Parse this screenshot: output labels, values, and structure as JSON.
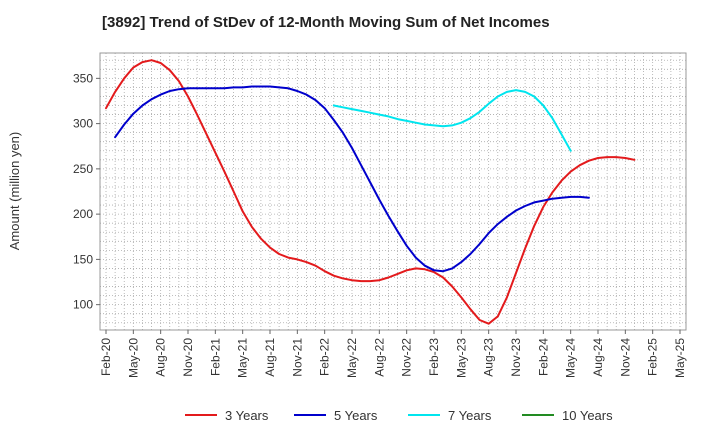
{
  "chart_data": {
    "type": "line",
    "title": "[3892]  Trend of StDev of 12-Month Moving Sum of Net Incomes",
    "xlabel": "",
    "ylabel": "Amount (million yen)",
    "ylim": [
      72,
      378
    ],
    "yticks": [
      100,
      150,
      200,
      250,
      300,
      350
    ],
    "x_categories": [
      "Feb-20",
      "May-20",
      "Aug-20",
      "Nov-20",
      "Feb-21",
      "May-21",
      "Aug-21",
      "Nov-21",
      "Feb-22",
      "May-22",
      "Aug-22",
      "Nov-22",
      "Feb-23",
      "May-23",
      "Aug-23",
      "Nov-23",
      "Feb-24",
      "May-24",
      "Aug-24",
      "Nov-24",
      "Feb-25",
      "May-25"
    ],
    "grid": true,
    "legend_position": "bottom",
    "series": [
      {
        "name": "3 Years",
        "color": "#e31a1c",
        "start_index": 0,
        "values": [
          317,
          335,
          350,
          362,
          368,
          370,
          367,
          359,
          347,
          330,
          310,
          289,
          268,
          247,
          225,
          203,
          186,
          173,
          163,
          156,
          152,
          150,
          147,
          143,
          137,
          132,
          129,
          127,
          126,
          126,
          127,
          130,
          134,
          138,
          140,
          139,
          136,
          130,
          120,
          108,
          95,
          83,
          79,
          87,
          108,
          135,
          162,
          187,
          208,
          224,
          237,
          247,
          254,
          259,
          262,
          263,
          263,
          262,
          260
        ]
      },
      {
        "name": "5 Years",
        "color": "#0000cc",
        "start_index": 1,
        "values": [
          285,
          299,
          311,
          320,
          327,
          332,
          336,
          338,
          339,
          339,
          339,
          339,
          339,
          340,
          340,
          341,
          341,
          341,
          340,
          339,
          336,
          332,
          326,
          317,
          304,
          290,
          273,
          254,
          235,
          216,
          198,
          181,
          165,
          152,
          143,
          138,
          137,
          140,
          147,
          156,
          167,
          179,
          189,
          197,
          204,
          209,
          213,
          215,
          217,
          218,
          219,
          219,
          218
        ]
      },
      {
        "name": "7 Years",
        "color": "#00e5ee",
        "start_index": 25,
        "values": [
          320,
          318,
          316,
          314,
          312,
          310,
          308,
          305,
          303,
          301,
          299,
          298,
          297,
          298,
          301,
          306,
          313,
          322,
          330,
          335,
          337,
          335,
          330,
          320,
          306,
          288,
          270
        ]
      },
      {
        "name": "10 Years",
        "color": "#228b22",
        "start_index": 0,
        "values": []
      }
    ]
  }
}
